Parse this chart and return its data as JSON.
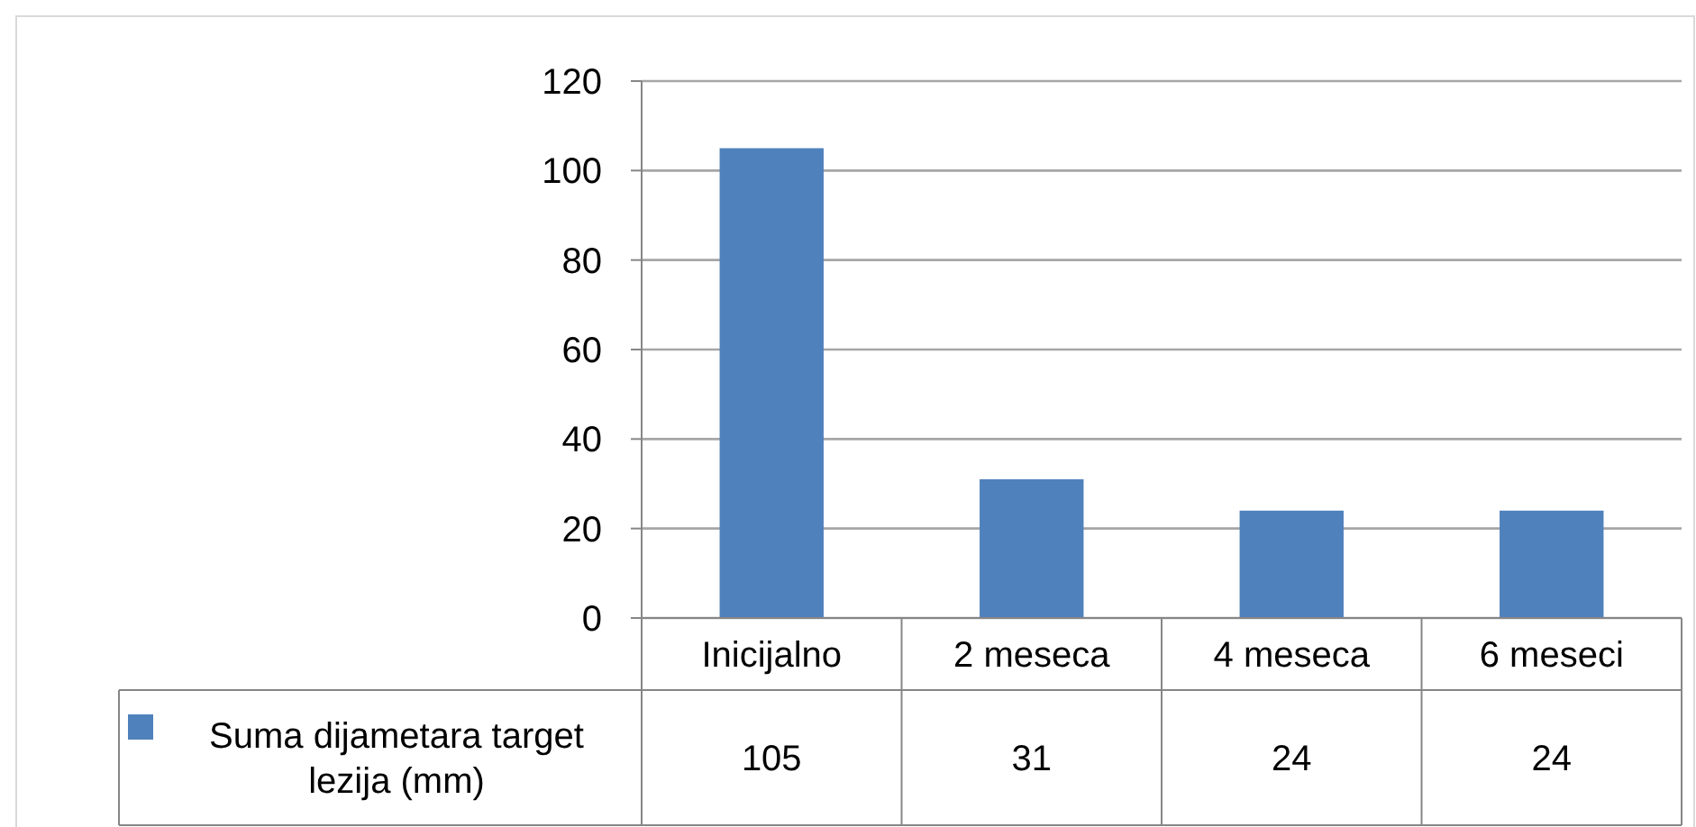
{
  "chart_data": {
    "type": "bar",
    "categories": [
      "Inicijalno",
      "2 meseca",
      "4 meseca",
      "6 meseci"
    ],
    "series": [
      {
        "name": "Suma dijametara target lezija (mm)",
        "color": "#4f81bd",
        "values": [
          105,
          31,
          24,
          24
        ]
      }
    ],
    "ylim": [
      0,
      120
    ],
    "yticks": [
      0,
      20,
      40,
      60,
      80,
      100,
      120
    ],
    "grid": "y",
    "legend": "bottom",
    "data_labels": true
  }
}
